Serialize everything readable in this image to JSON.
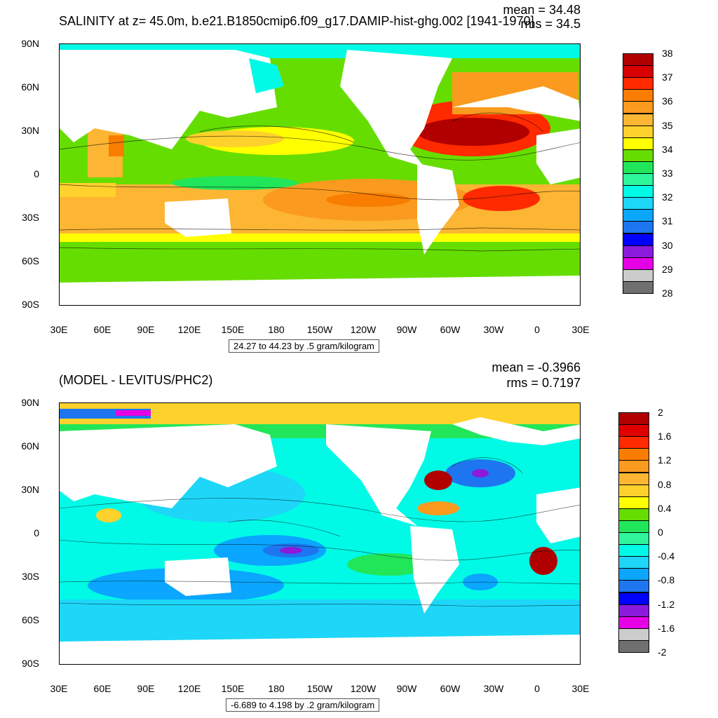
{
  "panels": [
    {
      "title": "SALINITY at z=  45.0m, b.e21.B1850cmip6.f09_g17.DAMIP-hist-ghg.002 [1941-1970]",
      "mean_text": "mean = 34.48",
      "rms_text": "rms = 34.5",
      "range_text": "24.27 to 44.23 by .5 gram/kilogram",
      "colorbar": {
        "colors": [
          "#b00000",
          "#d90000",
          "#ff2a00",
          "#f87d00",
          "#fa9a1e",
          "#fdb534",
          "#ffd12c",
          "#ffff00",
          "#66dd00",
          "#22e65a",
          "#2ff59b",
          "#00fae6",
          "#1ed6f7",
          "#0aa6ff",
          "#1d76ef",
          "#0000ff",
          "#8b1adc",
          "#e600e6",
          "#cccccc",
          "#707070"
        ],
        "labels": [
          "38",
          "37",
          "36",
          "35",
          "34",
          "33",
          "32",
          "31",
          "30",
          "29",
          "28"
        ]
      }
    },
    {
      "title": "(MODEL - LEVITUS/PHC2)",
      "mean_text": "mean = -0.3966",
      "rms_text": "rms = 0.7197",
      "range_text": "-6.689 to 4.198 by .2 gram/kilogram",
      "colorbar": {
        "colors": [
          "#b00000",
          "#e00000",
          "#ff2a00",
          "#f87d00",
          "#fa9a1e",
          "#fdb534",
          "#ffd12c",
          "#ffff00",
          "#66dd00",
          "#22e65a",
          "#2ff59b",
          "#00fae6",
          "#1ed6f7",
          "#0aa6ff",
          "#1d76ef",
          "#0000ff",
          "#8b1adc",
          "#e600e6",
          "#cccccc",
          "#707070"
        ],
        "labels": [
          "2",
          "1.6",
          "1.2",
          "0.8",
          "0.4",
          "0",
          "-0.4",
          "-0.8",
          "-1.2",
          "-1.6",
          "-2"
        ]
      }
    }
  ],
  "axes": {
    "y_ticks": [
      "90N",
      "60N",
      "30N",
      "0",
      "30S",
      "60S",
      "90S"
    ],
    "x_ticks": [
      "30E",
      "60E",
      "90E",
      "120E",
      "150E",
      "180",
      "150W",
      "120W",
      "90W",
      "60W",
      "30W",
      "0",
      "30E"
    ]
  },
  "map_colors": {
    "land": "#ffffff",
    "contour": "#000000"
  }
}
